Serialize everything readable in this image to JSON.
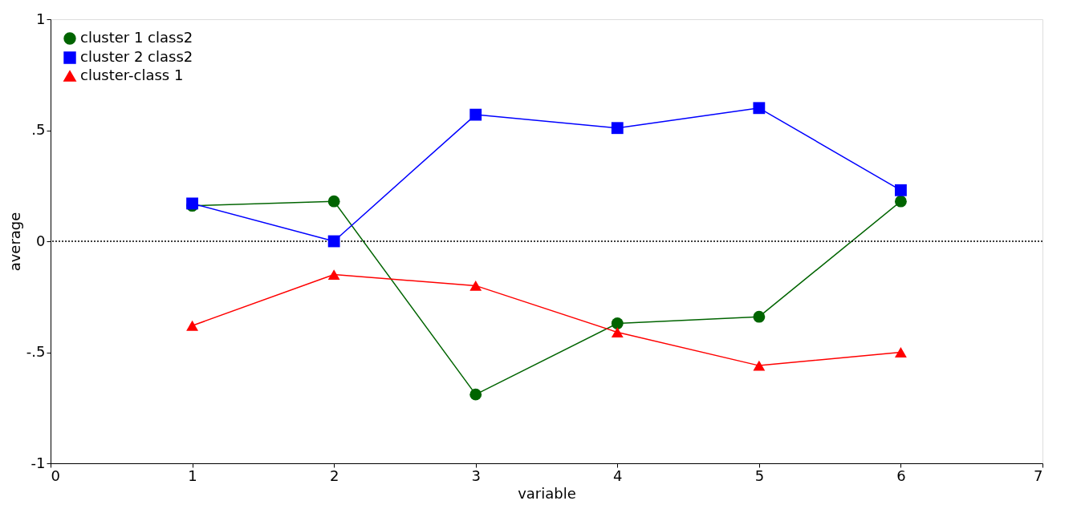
{
  "chart_data": {
    "type": "line",
    "xlabel": "variable",
    "ylabel": "average",
    "x": [
      1,
      2,
      3,
      4,
      5,
      6
    ],
    "series": [
      {
        "name": "cluster 1 class2",
        "color": "#006400",
        "marker": "circle",
        "values": [
          0.16,
          0.18,
          -0.69,
          -0.37,
          -0.34,
          0.18
        ]
      },
      {
        "name": "cluster 2 class2",
        "color": "#0000ff",
        "marker": "square",
        "values": [
          0.17,
          0,
          0.57,
          0.51,
          0.6,
          0.23
        ]
      },
      {
        "name": "cluster-class 1",
        "color": "#ff0000",
        "marker": "triangle",
        "values": [
          -0.38,
          -0.15,
          -0.2,
          -0.41,
          -0.56,
          -0.5
        ]
      }
    ],
    "xlim": [
      0,
      7
    ],
    "xticks": [
      0,
      1,
      2,
      3,
      4,
      5,
      6,
      7
    ],
    "ylim": [
      -1,
      1
    ],
    "yticks": [
      -1,
      {
        "value": -0.5,
        "label": "-.5"
      },
      0,
      {
        "value": 0.5,
        "label": ".5"
      },
      1
    ],
    "ref_lines": [
      {
        "axis": "y",
        "value": 0,
        "line_style": "dotted",
        "color": "#000000"
      }
    ],
    "legend": "top left",
    "grid": false,
    "line_style": "solid"
  }
}
